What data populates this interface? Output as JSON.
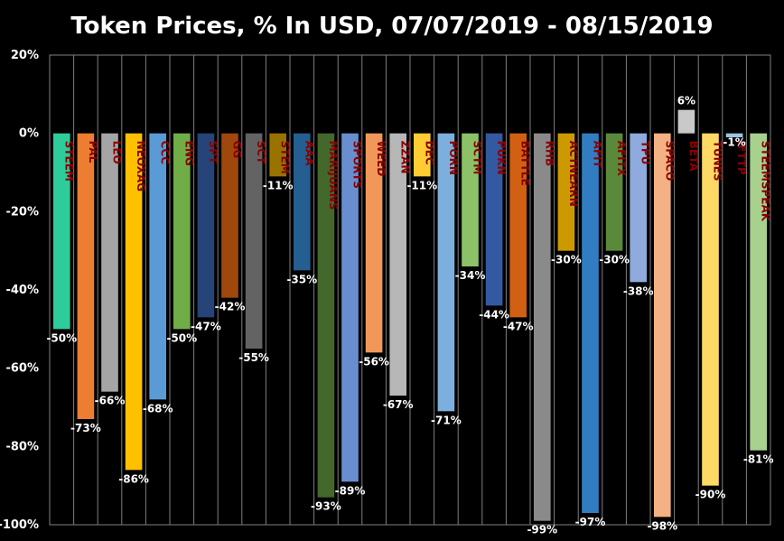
{
  "chart_data": {
    "type": "bar",
    "title": "Token Prices, % In USD, 07/07/2019 - 08/15/2019",
    "ylim": [
      -100,
      20
    ],
    "yticks": [
      20,
      0,
      -20,
      -40,
      -60,
      -80,
      -100
    ],
    "ytick_labels": [
      "20%",
      "0%",
      "-20%",
      "-40%",
      "-60%",
      "-80%",
      "-100%"
    ],
    "grid": "vertical",
    "legend": "none",
    "categories": [
      "STEEM",
      "PAL",
      "LEO",
      "NEOXAG",
      "CCC",
      "ENG",
      "SPT",
      "GG",
      "SCT",
      "STEM",
      "AAA",
      "MARIJUANS",
      "SPORTS",
      "WEED",
      "ZZAN",
      "DEC",
      "PORN",
      "SCTM",
      "PUKN",
      "BATTLE",
      "RHB",
      "ACTNEARN",
      "AFIT",
      "AFITX",
      "TPU",
      "SPACO",
      "BETA",
      "TUNES",
      "IFTTP",
      "STEEMSPEAK"
    ],
    "values": [
      -50,
      -73,
      -66,
      -86,
      -68,
      -50,
      -47,
      -42,
      -55,
      -11,
      -35,
      -93,
      -89,
      -56,
      -67,
      -11,
      -71,
      -34,
      -44,
      -47,
      -99,
      -30,
      -97,
      -30,
      -38,
      -98,
      6,
      -90,
      -1,
      -81
    ],
    "value_labels": [
      "-50%",
      "-73%",
      "-66%",
      "-86%",
      "-68%",
      "-50%",
      "-47%",
      "-42%",
      "-55%",
      "-11%",
      "-35%",
      "-93%",
      "-89%",
      "-56%",
      "-67%",
      "-11%",
      "-71%",
      "-34%",
      "-44%",
      "-47%",
      "-99%",
      "-30%",
      "-97%",
      "-30%",
      "-38%",
      "-98%",
      "6%",
      "-90%",
      "-1%",
      "-81%"
    ],
    "colors": [
      "#2ecc9a",
      "#ed7d31",
      "#a5a5a5",
      "#ffc000",
      "#5b9bd5",
      "#70ad47",
      "#264478",
      "#9e480e",
      "#636363",
      "#997300",
      "#255e91",
      "#43682b",
      "#698ed0",
      "#f1975a",
      "#b7b7b7",
      "#ffcd33",
      "#7cafdd",
      "#8cc168",
      "#335aa1",
      "#d26012",
      "#8a8a8a",
      "#cc9a00",
      "#327dc2",
      "#5a8a39",
      "#8faadc",
      "#f4b183",
      "#c9c9c9",
      "#ffd966",
      "#9dc3e6",
      "#a9d18e"
    ]
  }
}
